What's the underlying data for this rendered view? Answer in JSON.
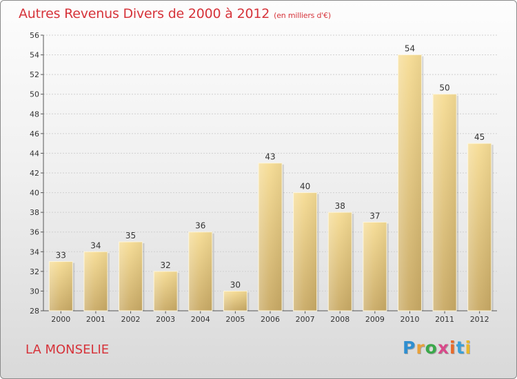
{
  "title": {
    "main": "Autres Revenus Divers de 2000 à 2012",
    "sub": "(en milliers d'€)"
  },
  "footer": {
    "place": "LA MONSELIE"
  },
  "logo": {
    "letters": [
      "P",
      "r",
      "o",
      "x",
      "i",
      "t",
      "i"
    ],
    "colors": [
      "#2f8fd0",
      "#e8a13a",
      "#3aa84a",
      "#d84a8a",
      "#e86a2a",
      "#3aa0d8",
      "#e8b82a"
    ]
  },
  "colors": {
    "bar_light": "#f6dc94",
    "bar_dark": "#c9aa65",
    "text_red": "#d6333a"
  },
  "chart_data": {
    "type": "bar",
    "categories": [
      "2000",
      "2001",
      "2002",
      "2003",
      "2004",
      "2005",
      "2006",
      "2007",
      "2008",
      "2009",
      "2010",
      "2011",
      "2012"
    ],
    "values": [
      33,
      34,
      35,
      32,
      36,
      30,
      43,
      40,
      38,
      37,
      54,
      50,
      45
    ],
    "ylim": [
      28,
      56
    ],
    "yticks": [
      "28",
      "30",
      "32",
      "34",
      "36",
      "38",
      "40",
      "42",
      "44",
      "46",
      "48",
      "50",
      "52",
      "54",
      "56"
    ],
    "grid": true
  }
}
